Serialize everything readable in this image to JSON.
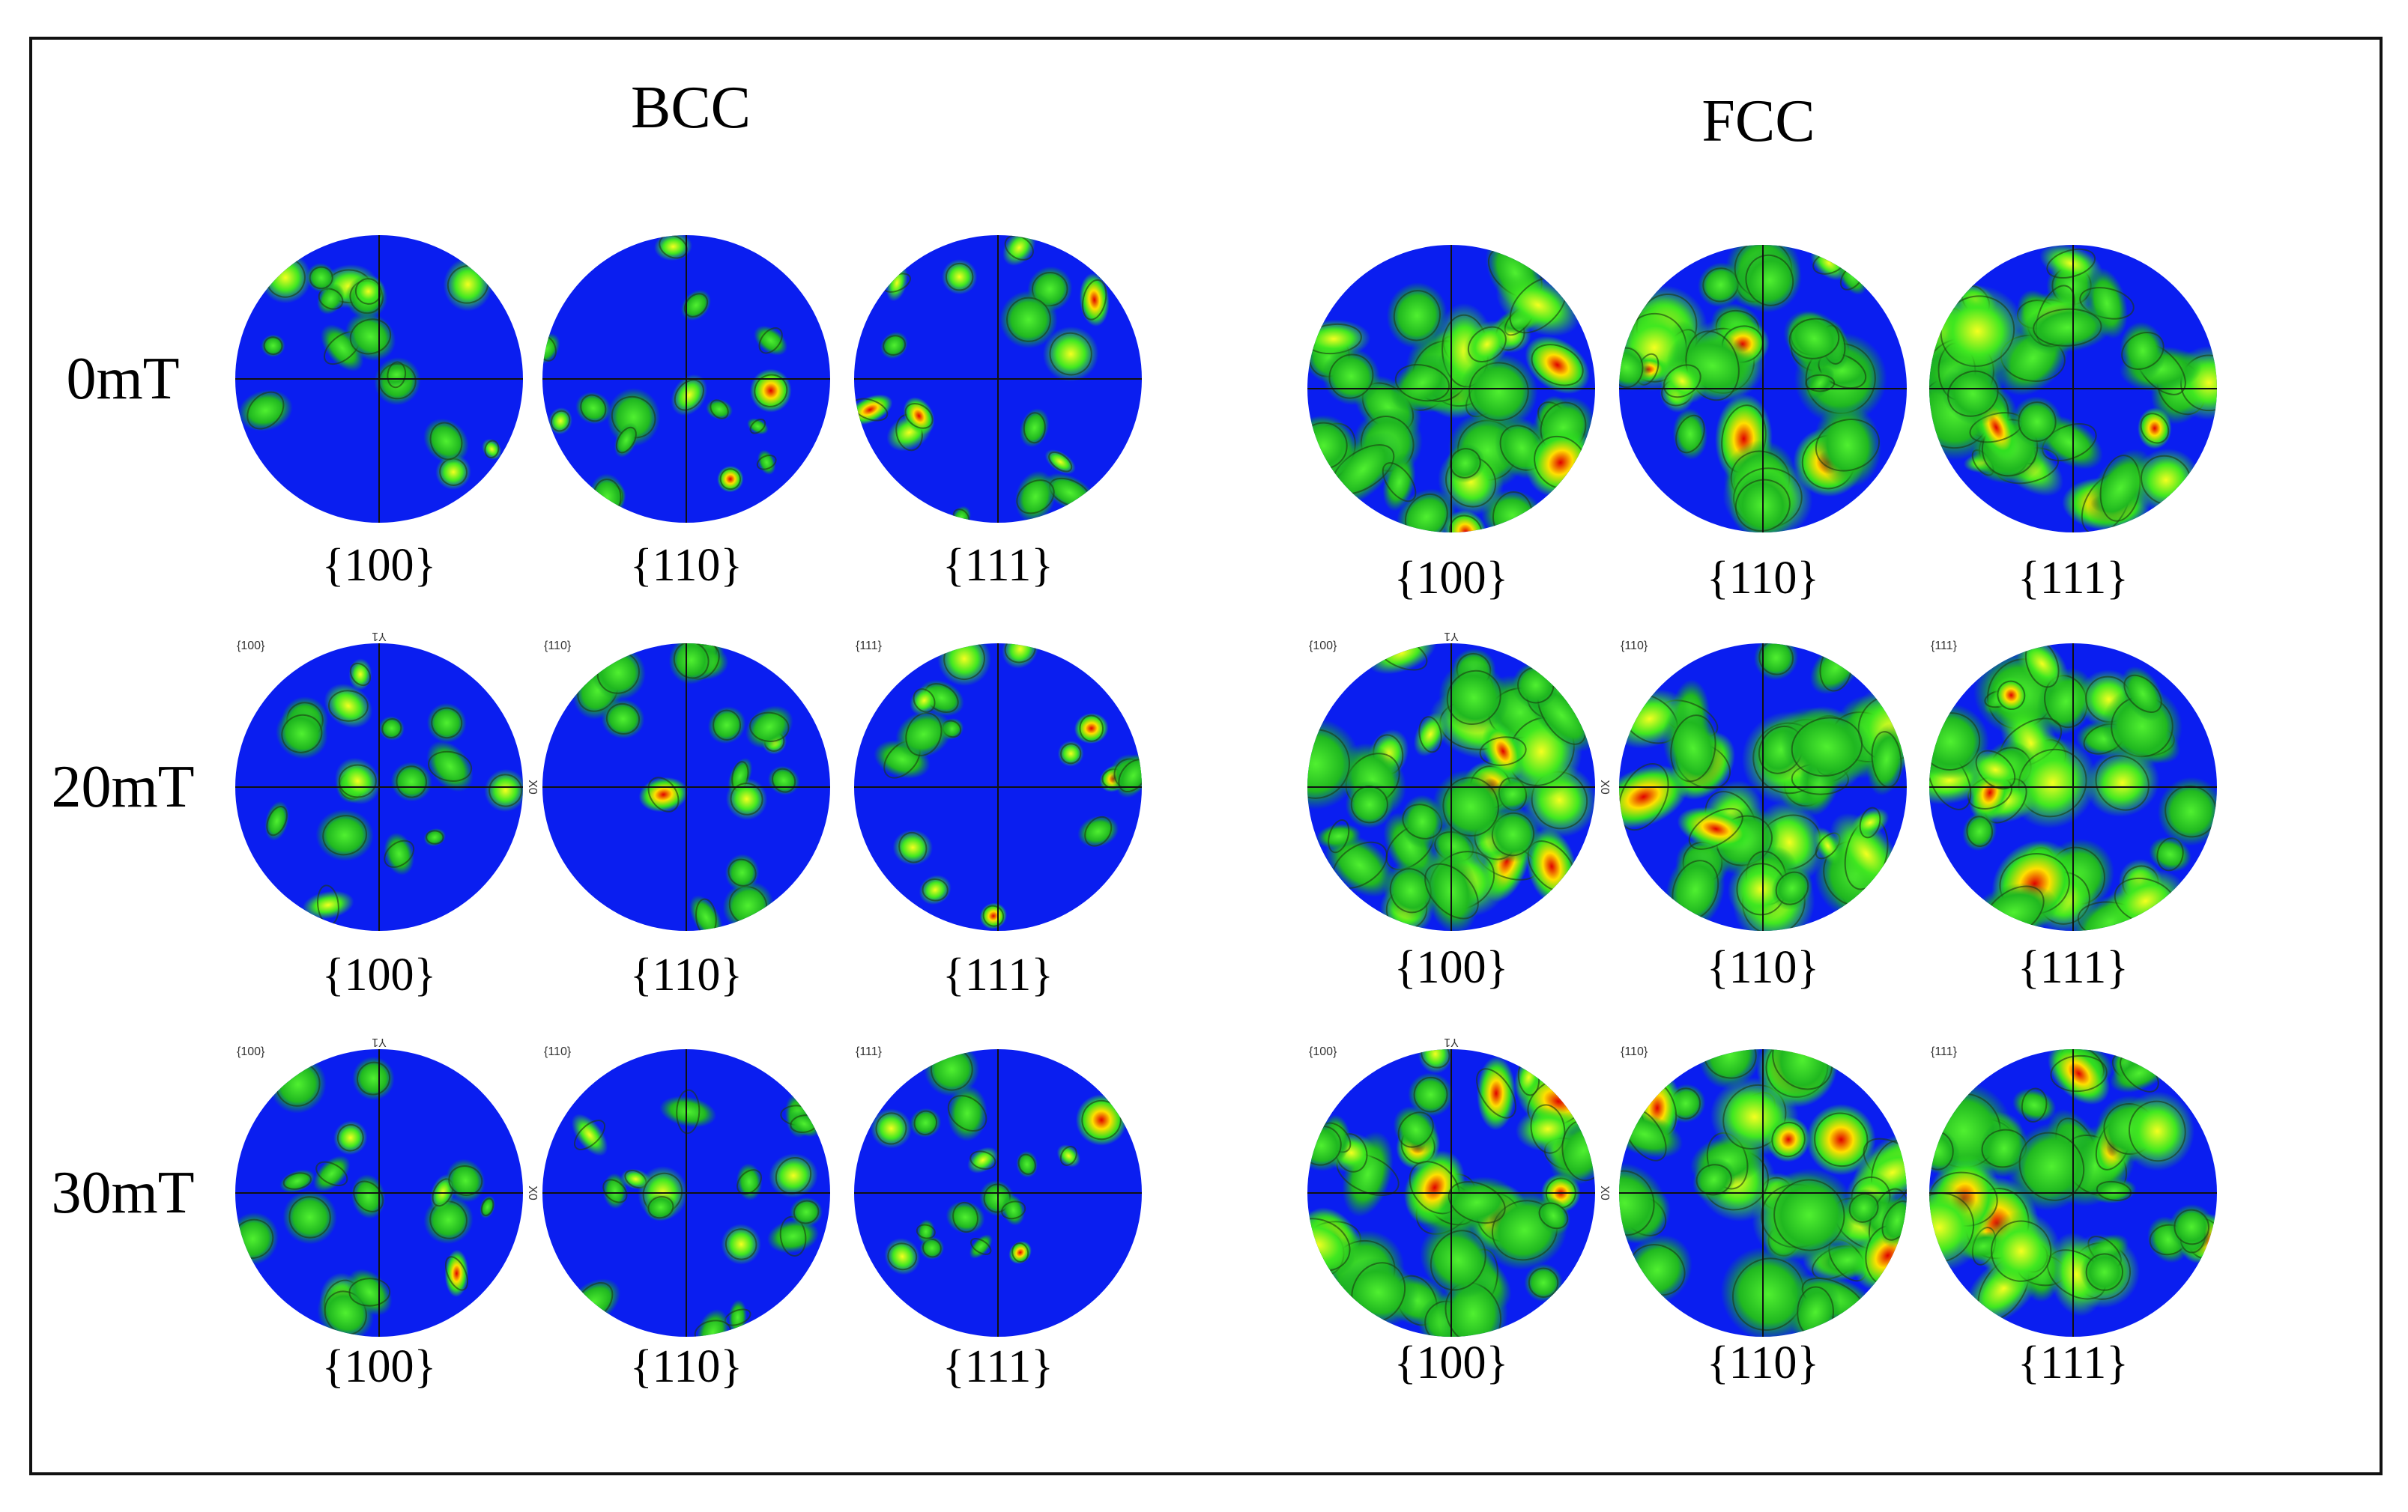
{
  "row_labels": [
    "0mT",
    "20mT",
    "30mT"
  ],
  "panels": [
    {
      "title": "BCC",
      "rows": [
        {
          "captions": [
            "{100}",
            "{110}",
            "{111}"
          ]
        },
        {
          "captions": [
            "{100}",
            "{110}",
            "{111}"
          ],
          "corner_labels": [
            "{100}",
            "{110}",
            "{111}"
          ],
          "axis_labels": [
            "Y1",
            "X0"
          ]
        },
        {
          "captions": [
            "{100}",
            "{110}",
            "{111}"
          ],
          "corner_labels": [
            "{100}",
            "{110}",
            "{111}"
          ],
          "axis_labels": [
            "Y1",
            "X0"
          ]
        }
      ]
    },
    {
      "title": "FCC",
      "rows": [
        {
          "captions": [
            "{100}",
            "{110}",
            "{111}"
          ]
        },
        {
          "captions": [
            "{100}",
            "{110}",
            "{111}"
          ],
          "corner_labels": [
            "{100}",
            "{110}",
            "{111}"
          ],
          "axis_labels": [
            "Y1",
            "X0"
          ]
        },
        {
          "captions": [
            "{100}",
            "{110}",
            "{111}"
          ],
          "corner_labels": [
            "{100}",
            "{110}",
            "{111}"
          ],
          "axis_labels": [
            "Y1",
            "X0"
          ]
        }
      ]
    }
  ]
}
